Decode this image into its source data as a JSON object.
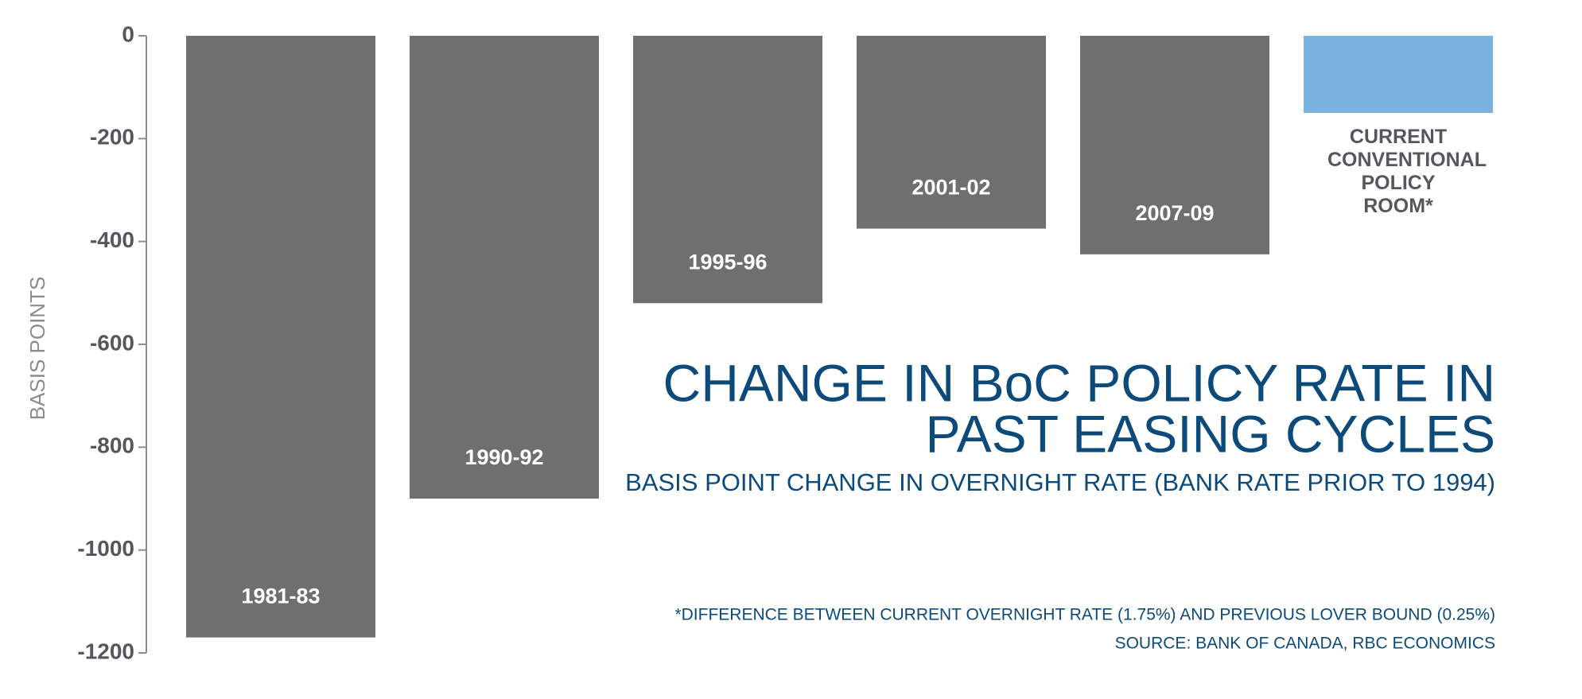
{
  "chart_data": {
    "type": "bar",
    "title_lines": [
      "CHANGE IN BoC POLICY RATE IN",
      "PAST EASING CYCLES"
    ],
    "subtitle": "BASIS POINT CHANGE IN OVERNIGHT RATE (BANK RATE PRIOR TO 1994)",
    "notes": [
      "*DIFFERENCE BETWEEN CURRENT OVERNIGHT RATE (1.75%) AND PREVIOUS LOVER BOUND (0.25%)",
      "SOURCE: BANK OF CANADA, RBC ECONOMICS"
    ],
    "y_label": "BASIS POINTS",
    "categories": [
      "1981-83",
      "1990-92",
      "1995-96",
      "2001-02",
      "2007-09",
      "CURRENT CONVENTIONAL POLICY ROOM*"
    ],
    "values": [
      -1170,
      -900,
      -520,
      -375,
      -425,
      -150
    ],
    "colors": [
      "#6f6f6f",
      "#6f6f6f",
      "#6f6f6f",
      "#6f6f6f",
      "#6f6f6f",
      "#7ab3e0"
    ],
    "ylim": [
      -1200,
      0
    ],
    "yticks": [
      0,
      -200,
      -400,
      -600,
      -800,
      -1000,
      -1200
    ]
  }
}
